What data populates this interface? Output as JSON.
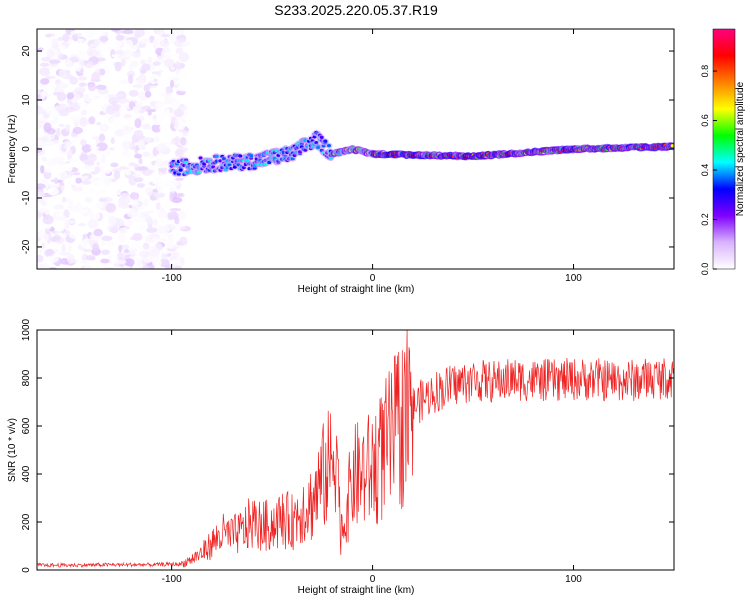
{
  "figure_title": "S233.2025.220.05.37.R19",
  "chart_data": [
    {
      "type": "heatmap",
      "title": "",
      "xlabel": "Height of straight line (km)",
      "ylabel": "Frequency (Hz)",
      "xlim": [
        -167,
        150
      ],
      "ylim": [
        -24.5,
        24.5
      ],
      "xticks": [
        -100,
        0,
        100
      ],
      "yticks": [
        -20,
        -10,
        0,
        10,
        20
      ],
      "colorbar": {
        "label": "Normalized spectral amplitude",
        "range": [
          0,
          0.97
        ],
        "ticks": [
          "0.0",
          "0.2",
          "0.4",
          "0.6",
          "0.8"
        ],
        "colors": [
          "#ffffff",
          "#d9b3ff",
          "#7f00ff",
          "#0000ff",
          "#00ffff",
          "#00ff00",
          "#ffff00",
          "#ff8000",
          "#ff0000",
          "#ff0080"
        ]
      },
      "regions": [
        {
          "name": "noise",
          "x_range": [
            -167,
            -93
          ],
          "y_range": [
            -24.5,
            24.5
          ],
          "amplitude": [
            0.0,
            0.1
          ]
        },
        {
          "name": "signal",
          "x_range": [
            -100,
            150
          ],
          "center_freq": [
            [
              -100,
              -4
            ],
            [
              -80,
              -3
            ],
            [
              -60,
              -2.5
            ],
            [
              -40,
              -1
            ],
            [
              -28,
              2
            ],
            [
              -20,
              -1
            ],
            [
              -10,
              0
            ],
            [
              0,
              -1
            ],
            [
              50,
              -1.5
            ],
            [
              100,
              0
            ],
            [
              150,
              0.5
            ]
          ],
          "amplitude": [
            0.1,
            0.97
          ]
        }
      ]
    },
    {
      "type": "line",
      "title": "",
      "xlabel": "Height of straight line (km)",
      "ylabel": "SNR (10 * v/v)",
      "xlim": [
        -167,
        150
      ],
      "ylim": [
        0,
        1000
      ],
      "xticks": [
        -100,
        0,
        100
      ],
      "yticks": [
        0,
        200,
        400,
        600,
        800,
        1000
      ],
      "color": "#ee2222",
      "series": [
        {
          "x": [
            -167,
            -150,
            -130,
            -110,
            -95,
            -90,
            -85,
            -80,
            -75,
            -70,
            -65,
            -60,
            -55,
            -50,
            -45,
            -40,
            -35,
            -30,
            -25,
            -20,
            -18,
            -16,
            -14,
            -10,
            -5,
            0,
            5,
            10,
            15,
            20,
            25,
            30,
            40,
            50,
            60,
            70,
            80,
            90,
            100,
            110,
            120,
            130,
            140,
            150
          ],
          "y": [
            20,
            20,
            22,
            22,
            25,
            45,
            70,
            110,
            150,
            140,
            160,
            200,
            180,
            190,
            210,
            200,
            260,
            280,
            380,
            450,
            600,
            150,
            200,
            380,
            400,
            420,
            480,
            550,
            620,
            680,
            710,
            740,
            770,
            790,
            785,
            795,
            790,
            790,
            795,
            795,
            790,
            790,
            800,
            800
          ]
        }
      ]
    }
  ]
}
